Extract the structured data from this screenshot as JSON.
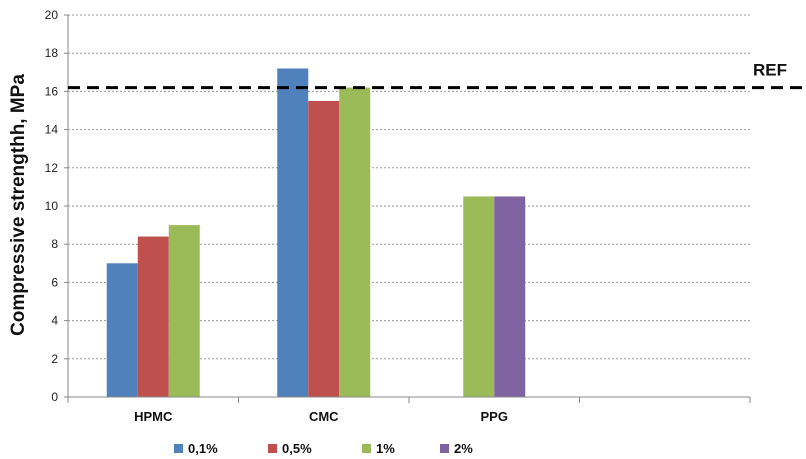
{
  "chart_data": {
    "type": "bar",
    "title": "",
    "xlabel": "",
    "ylabel": "Compressive strengthh, MPa",
    "ylim": [
      0,
      20
    ],
    "yticks": [
      "0",
      "2",
      "4",
      "6",
      "8",
      "10",
      "12",
      "14",
      "16",
      "18",
      "20"
    ],
    "categories": [
      "HPMC",
      "CMC",
      "PPG",
      ""
    ],
    "series": [
      {
        "name": "0,1%",
        "color": "#4f81bd",
        "values": [
          7.0,
          17.2,
          null,
          null
        ]
      },
      {
        "name": "0,5%",
        "color": "#c0504d",
        "values": [
          8.4,
          15.5,
          null,
          null
        ]
      },
      {
        "name": "1%",
        "color": "#9bbb59",
        "values": [
          9.0,
          16.2,
          10.5,
          null
        ]
      },
      {
        "name": "2%",
        "color": "#8064a2",
        "values": [
          null,
          null,
          10.5,
          null
        ]
      }
    ],
    "reference_line": {
      "label": "REF",
      "value": 16.2,
      "style": "dashed"
    },
    "grid": "horizontal dotted",
    "legend_position": "bottom"
  }
}
